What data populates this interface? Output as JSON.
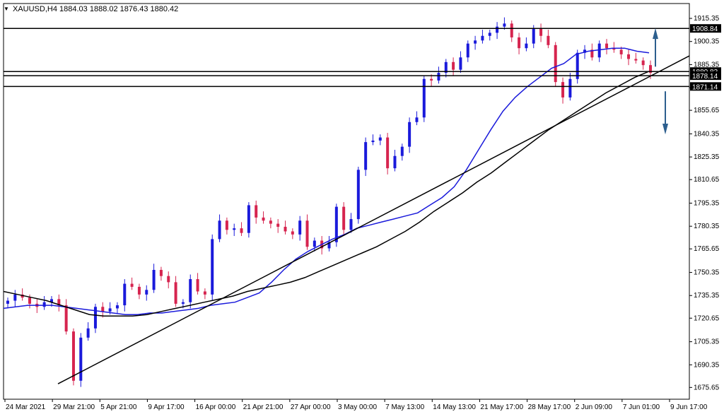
{
  "header": {
    "symbol": "XAUUSD,H4",
    "ohlc": "1884.03 1888.02 1876.43 1880.42"
  },
  "colors": {
    "background": "#ffffff",
    "bull_candle": "#1a1adb",
    "bear_candle": "#d6244f",
    "ma_fast": "#1a1adb",
    "ma_slow": "#000000",
    "trendline": "#000000",
    "arrow": "#2d5f8e",
    "label_bg": "#000000",
    "label_text": "#ffffff"
  },
  "chart_data": {
    "type": "candlestick",
    "title": "XAUUSD,H4",
    "ylim": [
      1668,
      1925
    ],
    "y_ticks": [
      "1915.35",
      "1900.35",
      "1885.35",
      "1870.35",
      "1855.65",
      "1840.35",
      "1825.35",
      "1810.65",
      "1795.35",
      "1780.35",
      "1765.65",
      "1750.35",
      "1735.35",
      "1720.65",
      "1705.35",
      "1690.35",
      "1675.65"
    ],
    "x_ticks": [
      "24 Mar 2021",
      "29 Mar 21:00",
      "5 Apr 21:00",
      "9 Apr 17:00",
      "16 Apr 00:00",
      "21 Apr 21:00",
      "27 Apr 00:00",
      "3 May 00:00",
      "7 May 13:00",
      "14 May 13:00",
      "21 May 17:00",
      "28 May 17:00",
      "2 Jun 09:00",
      "7 Jun 01:00",
      "9 Jun 17:00"
    ],
    "horizontal_levels": [
      {
        "value": 1908.84,
        "label": "1908.84"
      },
      {
        "value": 1880.83,
        "label": "1880.83"
      },
      {
        "value": 1878.14,
        "label": "1878.14"
      },
      {
        "value": 1871.14,
        "label": "1871.14"
      }
    ],
    "closes": [
      1732,
      1736,
      1734,
      1730,
      1728,
      1731,
      1733,
      1729,
      1712,
      1680,
      1708,
      1714,
      1728,
      1725,
      1727,
      1729,
      1743,
      1741,
      1736,
      1739,
      1752,
      1748,
      1744,
      1730,
      1731,
      1746,
      1738,
      1736,
      1772,
      1784,
      1778,
      1779,
      1776,
      1794,
      1786,
      1784,
      1782,
      1780,
      1777,
      1775,
      1784,
      1767,
      1771,
      1766,
      1770,
      1793,
      1778,
      1785,
      1817,
      1835,
      1836,
      1838,
      1818,
      1826,
      1832,
      1848,
      1851,
      1876,
      1875,
      1880,
      1887,
      1882,
      1890,
      1899,
      1901,
      1904,
      1906,
      1910,
      1912,
      1903,
      1896,
      1899,
      1909,
      1904,
      1898,
      1874,
      1864,
      1876,
      1893,
      1895,
      1890,
      1899,
      1896,
      1895,
      1892,
      1889,
      1888,
      1885,
      1880
    ],
    "series": [
      {
        "name": "MA fast",
        "values": [
          1727,
          1728,
          1729,
          1729,
          1729,
          1728,
          1727,
          1726,
          1725,
          1724,
          1723,
          1723,
          1724,
          1724,
          1725,
          1726,
          1727,
          1729,
          1730,
          1731,
          1734,
          1737,
          1744,
          1752,
          1759,
          1764,
          1768,
          1772,
          1775,
          1779,
          1781,
          1783,
          1785,
          1787,
          1789,
          1794,
          1799,
          1806,
          1817,
          1830,
          1843,
          1855,
          1864,
          1871,
          1877,
          1883,
          1886,
          1892,
          1894,
          1895,
          1896,
          1896,
          1894,
          1893
        ]
      },
      {
        "name": "MA slow",
        "values": [
          1738,
          1736,
          1734,
          1732,
          1729,
          1726,
          1723,
          1722,
          1722,
          1722,
          1723,
          1725,
          1727,
          1729,
          1731,
          1733,
          1735,
          1738,
          1740,
          1742,
          1744,
          1747,
          1751,
          1755,
          1759,
          1763,
          1767,
          1772,
          1777,
          1783,
          1790,
          1796,
          1802,
          1809,
          1815,
          1822,
          1829,
          1836,
          1843,
          1849,
          1855,
          1861,
          1867,
          1872,
          1877,
          1881
        ]
      },
      {
        "name": "Trendline",
        "values": [
          1678,
          1891
        ]
      }
    ]
  }
}
